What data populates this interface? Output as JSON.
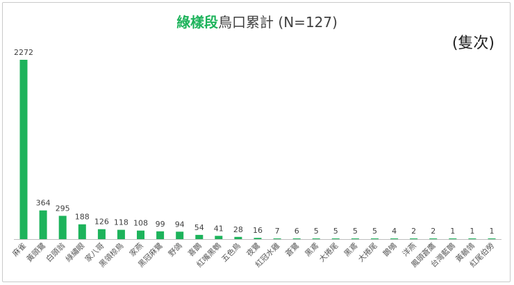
{
  "chart_data": {
    "type": "bar",
    "title_accent": "綠樣段",
    "title_rest": "鳥口累計 (N=127)",
    "unit_label": "(隻次)",
    "bar_color": "#1db35b",
    "categories": [
      "麻雀",
      "黃頭鷺",
      "白頭翁",
      "綠繡眼",
      "家八哥",
      "黑領椋鳥",
      "家燕",
      "黑冠麻鷺",
      "野鴿",
      "喜鵲",
      "紅嘴黑鵯",
      "五色鳥",
      "夜鷺",
      "紅冠水雞",
      "蒼鷺",
      "黑鳶",
      "大捲尾",
      "黑鳶",
      "大捲尾",
      "鵲鴝",
      "洋燕",
      "鳳頭蒼鷹",
      "台灣藍鵲",
      "黃鶺鴒",
      "紅尾伯勞"
    ],
    "values": [
      2272,
      364,
      295,
      188,
      126,
      118,
      108,
      99,
      94,
      54,
      41,
      28,
      16,
      7,
      6,
      5,
      5,
      5,
      5,
      4,
      2,
      2,
      1,
      1,
      1
    ],
    "ylim": [
      0,
      2272
    ],
    "grid": false
  }
}
